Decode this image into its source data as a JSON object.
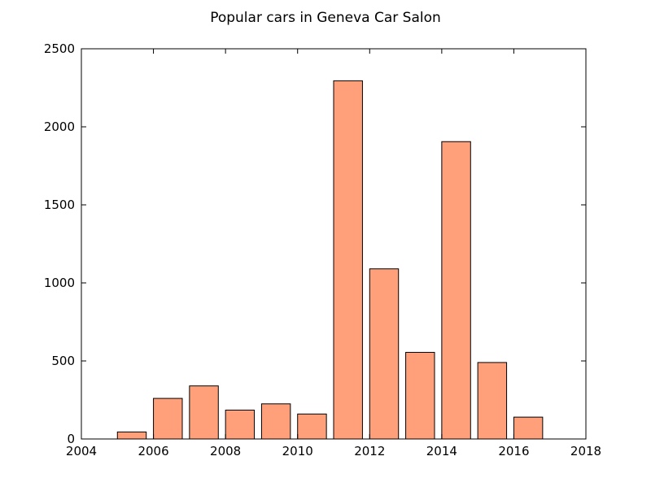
{
  "chart_data": {
    "type": "bar",
    "title": "Popular cars in Geneva Car Salon",
    "xlabel": "",
    "ylabel": "",
    "x": [
      2005,
      2006,
      2007,
      2008,
      2009,
      2010,
      2011,
      2012,
      2013,
      2014,
      2015,
      2016
    ],
    "values": [
      45,
      260,
      340,
      185,
      225,
      160,
      2295,
      1090,
      555,
      1905,
      490,
      140
    ],
    "bar_width_years": 0.8,
    "xlim": [
      2004,
      2018
    ],
    "ylim": [
      0,
      2500
    ],
    "xticks": [
      "2004",
      "2006",
      "2008",
      "2010",
      "2012",
      "2014",
      "2016",
      "2018"
    ],
    "yticks": [
      "0",
      "500",
      "1000",
      "1500",
      "2000",
      "2500"
    ],
    "bar_color": "#ffa07a",
    "edge_color": "#000000",
    "grid": false,
    "legend": "none"
  }
}
